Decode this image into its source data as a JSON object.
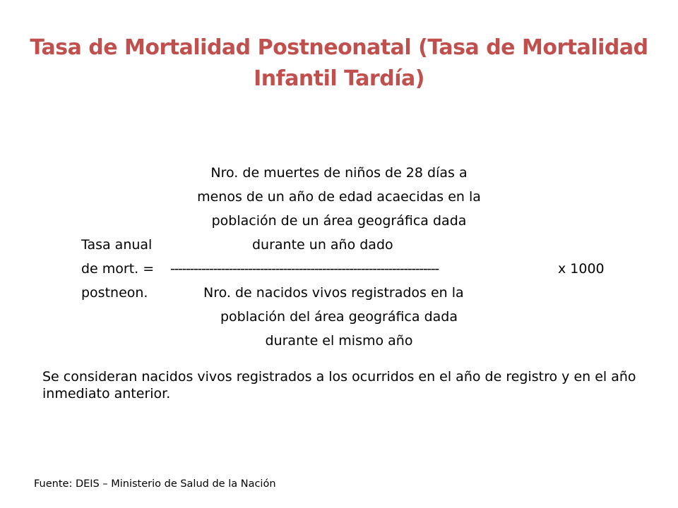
{
  "title": "Tasa de Mortalidad Postneonatal (Tasa de Mortalidad Infantil Tardía)",
  "formula": {
    "numerator_line1": "Nro. de muertes de niños de 28 días a",
    "numerator_line2": "menos de un año de edad acaecidas en la",
    "numerator_line3": "población de un área geográfica dada",
    "label_line1": "Tasa anual",
    "numerator_line4": "durante un año dado",
    "label_line2": "de mort. =",
    "fraction_bar": "---------------------------------------------------------------------",
    "multiplier": "x 1000",
    "label_line3": "postneon.",
    "denominator_line1": "Nro. de nacidos vivos registrados en la",
    "denominator_line2": "población del área geográfica dada",
    "denominator_line3": "durante el mismo año"
  },
  "note": "Se consideran nacidos vivos registrados a los ocurridos en el año de registro y en el año inmediato anterior.",
  "source": "Fuente: DEIS – Ministerio de Salud de la Nación",
  "colors": {
    "title": "#c0504d",
    "text": "#000000",
    "background": "#ffffff"
  }
}
